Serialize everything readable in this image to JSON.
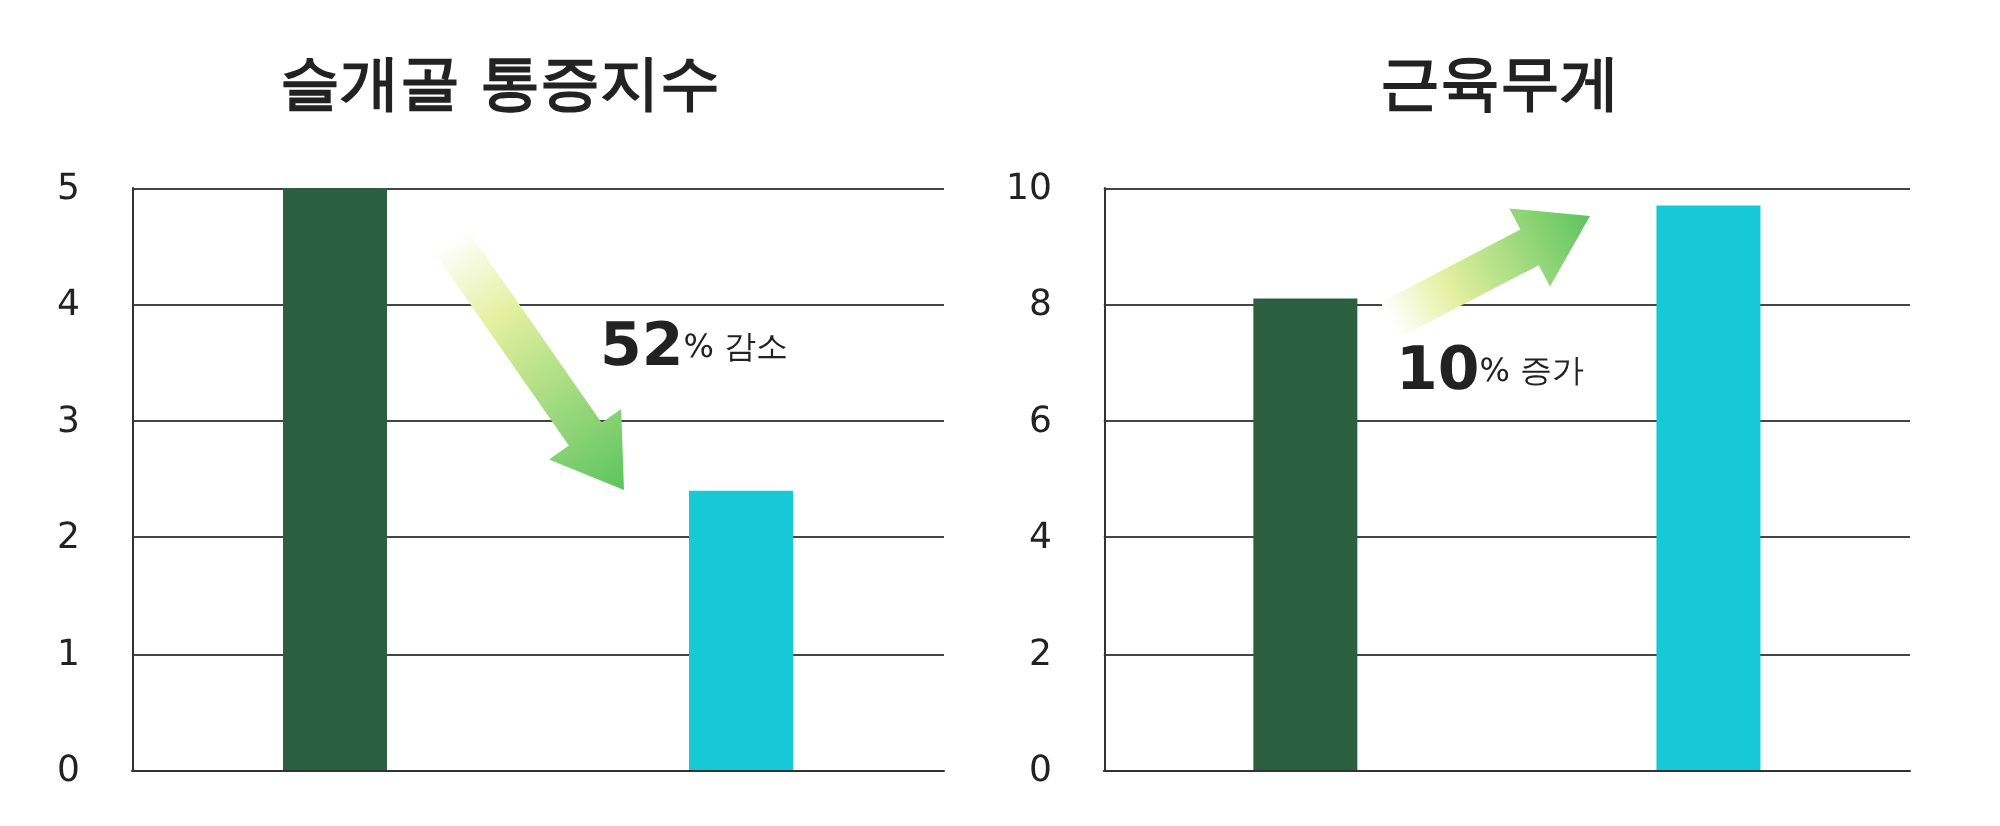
{
  "chart_data": [
    {
      "type": "bar",
      "title": "슬개골 통증지수",
      "categories": [
        null,
        null
      ],
      "values": [
        5,
        2.4
      ],
      "colors": [
        "#2a6040",
        "#17c9d6"
      ],
      "ylim": [
        0,
        5
      ],
      "yticks": [
        0,
        1,
        2,
        3,
        4,
        5
      ],
      "grid": "y",
      "annotations": [
        "52% 감소"
      ]
    },
    {
      "type": "bar",
      "title": "근육무게",
      "categories": [
        null,
        null
      ],
      "values": [
        8.1,
        9.7
      ],
      "colors": [
        "#2a6040",
        "#17c9d6"
      ],
      "ylim": [
        0,
        10
      ],
      "yticks": [
        0,
        2,
        4,
        6,
        8,
        10
      ],
      "grid": "y",
      "annotations": [
        "10% 증가"
      ]
    }
  ]
}
